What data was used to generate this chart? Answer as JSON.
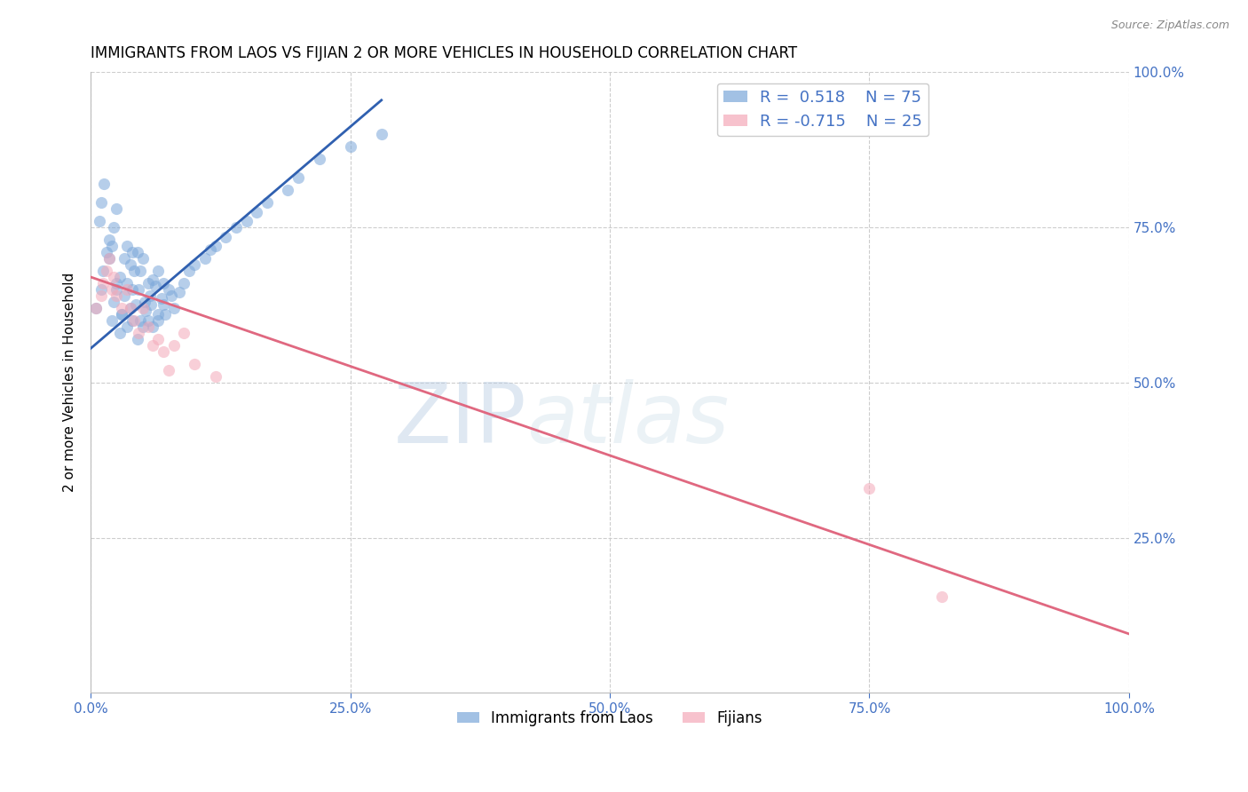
{
  "title": "IMMIGRANTS FROM LAOS VS FIJIAN 2 OR MORE VEHICLES IN HOUSEHOLD CORRELATION CHART",
  "source_text": "Source: ZipAtlas.com",
  "ylabel": "2 or more Vehicles in Household",
  "xlim": [
    0.0,
    1.0
  ],
  "ylim": [
    0.0,
    1.0
  ],
  "xtick_labels": [
    "0.0%",
    "25.0%",
    "50.0%",
    "75.0%",
    "100.0%"
  ],
  "xtick_positions": [
    0.0,
    0.25,
    0.5,
    0.75,
    1.0
  ],
  "right_ytick_labels": [
    "25.0%",
    "50.0%",
    "75.0%",
    "100.0%"
  ],
  "right_ytick_positions": [
    0.25,
    0.5,
    0.75,
    1.0
  ],
  "grid_color": "#c8c8c8",
  "background_color": "#ffffff",
  "title_fontsize": 12,
  "axis_label_color": "#4472c4",
  "watermark_zip": "ZIP",
  "watermark_atlas": "atlas",
  "legend_R_blue": "0.518",
  "legend_N_blue": "75",
  "legend_R_pink": "-0.715",
  "legend_N_pink": "25",
  "blue_scatter_color": "#7ba7d9",
  "pink_scatter_color": "#f4a8b8",
  "blue_line_color": "#3060b0",
  "pink_line_color": "#e06880",
  "scatter_alpha": 0.55,
  "scatter_size": 90,
  "blue_points_x": [
    0.005,
    0.01,
    0.012,
    0.015,
    0.018,
    0.008,
    0.01,
    0.013,
    0.02,
    0.022,
    0.025,
    0.018,
    0.02,
    0.022,
    0.025,
    0.028,
    0.03,
    0.025,
    0.028,
    0.032,
    0.035,
    0.03,
    0.032,
    0.035,
    0.038,
    0.04,
    0.035,
    0.038,
    0.04,
    0.042,
    0.045,
    0.04,
    0.043,
    0.046,
    0.048,
    0.05,
    0.045,
    0.048,
    0.052,
    0.055,
    0.05,
    0.053,
    0.057,
    0.06,
    0.055,
    0.058,
    0.062,
    0.065,
    0.06,
    0.065,
    0.068,
    0.07,
    0.065,
    0.07,
    0.075,
    0.072,
    0.078,
    0.08,
    0.085,
    0.09,
    0.095,
    0.1,
    0.11,
    0.115,
    0.12,
    0.13,
    0.14,
    0.15,
    0.16,
    0.17,
    0.19,
    0.2,
    0.22,
    0.25,
    0.28
  ],
  "blue_points_y": [
    0.62,
    0.65,
    0.68,
    0.71,
    0.73,
    0.76,
    0.79,
    0.82,
    0.6,
    0.63,
    0.66,
    0.7,
    0.72,
    0.75,
    0.78,
    0.58,
    0.61,
    0.65,
    0.67,
    0.7,
    0.72,
    0.61,
    0.64,
    0.66,
    0.69,
    0.71,
    0.59,
    0.62,
    0.65,
    0.68,
    0.71,
    0.6,
    0.625,
    0.65,
    0.68,
    0.7,
    0.57,
    0.6,
    0.63,
    0.66,
    0.59,
    0.615,
    0.64,
    0.665,
    0.6,
    0.625,
    0.655,
    0.68,
    0.59,
    0.61,
    0.635,
    0.66,
    0.6,
    0.625,
    0.65,
    0.61,
    0.64,
    0.62,
    0.645,
    0.66,
    0.68,
    0.69,
    0.7,
    0.715,
    0.72,
    0.735,
    0.75,
    0.76,
    0.775,
    0.79,
    0.81,
    0.83,
    0.86,
    0.88,
    0.9
  ],
  "pink_points_x": [
    0.005,
    0.01,
    0.012,
    0.015,
    0.018,
    0.02,
    0.022,
    0.025,
    0.03,
    0.035,
    0.038,
    0.042,
    0.046,
    0.05,
    0.055,
    0.06,
    0.065,
    0.07,
    0.075,
    0.08,
    0.09,
    0.1,
    0.12,
    0.75,
    0.82
  ],
  "pink_points_y": [
    0.62,
    0.64,
    0.66,
    0.68,
    0.7,
    0.65,
    0.67,
    0.64,
    0.62,
    0.65,
    0.62,
    0.6,
    0.58,
    0.62,
    0.59,
    0.56,
    0.57,
    0.55,
    0.52,
    0.56,
    0.58,
    0.53,
    0.51,
    0.33,
    0.155
  ],
  "blue_line_x": [
    0.0,
    0.28
  ],
  "blue_line_y": [
    0.555,
    0.955
  ],
  "pink_line_x": [
    0.0,
    1.0
  ],
  "pink_line_y": [
    0.67,
    0.095
  ]
}
